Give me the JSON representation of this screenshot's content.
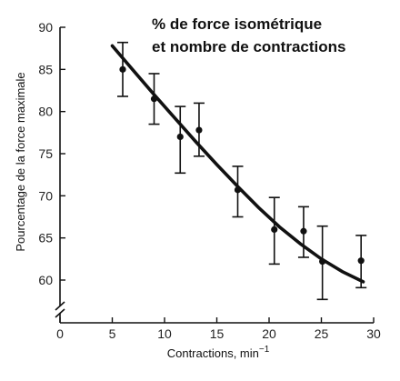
{
  "chart_data": {
    "type": "scatter",
    "title_lines": [
      "% de force isométrique",
      "et nombre de contractions"
    ],
    "xlabel": "Contractions, min",
    "xlabel_superscript": "−1",
    "ylabel": "Pourcentage de la force maximale",
    "xlim": [
      0,
      30
    ],
    "ylim": [
      58,
      90
    ],
    "x_ticks": [
      0,
      5,
      10,
      15,
      20,
      25,
      30
    ],
    "y_ticks": [
      60,
      65,
      70,
      75,
      80,
      85,
      90
    ],
    "y_axis_break": true,
    "grid": false,
    "points": [
      {
        "x": 6,
        "y": 85,
        "err_low": 81.8,
        "err_high": 88.2
      },
      {
        "x": 9,
        "y": 81.5,
        "err_low": 78.5,
        "err_high": 84.5
      },
      {
        "x": 11.5,
        "y": 77,
        "err_low": 72.7,
        "err_high": 80.6
      },
      {
        "x": 13.3,
        "y": 77.8,
        "err_low": 74.7,
        "err_high": 81
      },
      {
        "x": 17,
        "y": 70.7,
        "err_low": 67.5,
        "err_high": 73.5
      },
      {
        "x": 20.5,
        "y": 66,
        "err_low": 61.9,
        "err_high": 69.8
      },
      {
        "x": 23.3,
        "y": 65.8,
        "err_low": 62.7,
        "err_high": 68.7
      },
      {
        "x": 25.1,
        "y": 62.2,
        "err_low": 57.7,
        "err_high": 66.4
      },
      {
        "x": 28.8,
        "y": 62.3,
        "err_low": 59.1,
        "err_high": 65.3
      }
    ],
    "fit_curve": {
      "x": [
        5,
        7,
        9,
        11,
        13,
        15,
        17,
        19,
        21,
        23,
        25,
        27,
        29
      ],
      "y": [
        87.8,
        84.9,
        82.0,
        79.2,
        76.4,
        73.7,
        71.1,
        68.6,
        66.3,
        64.3,
        62.5,
        61.0,
        59.8
      ]
    }
  }
}
